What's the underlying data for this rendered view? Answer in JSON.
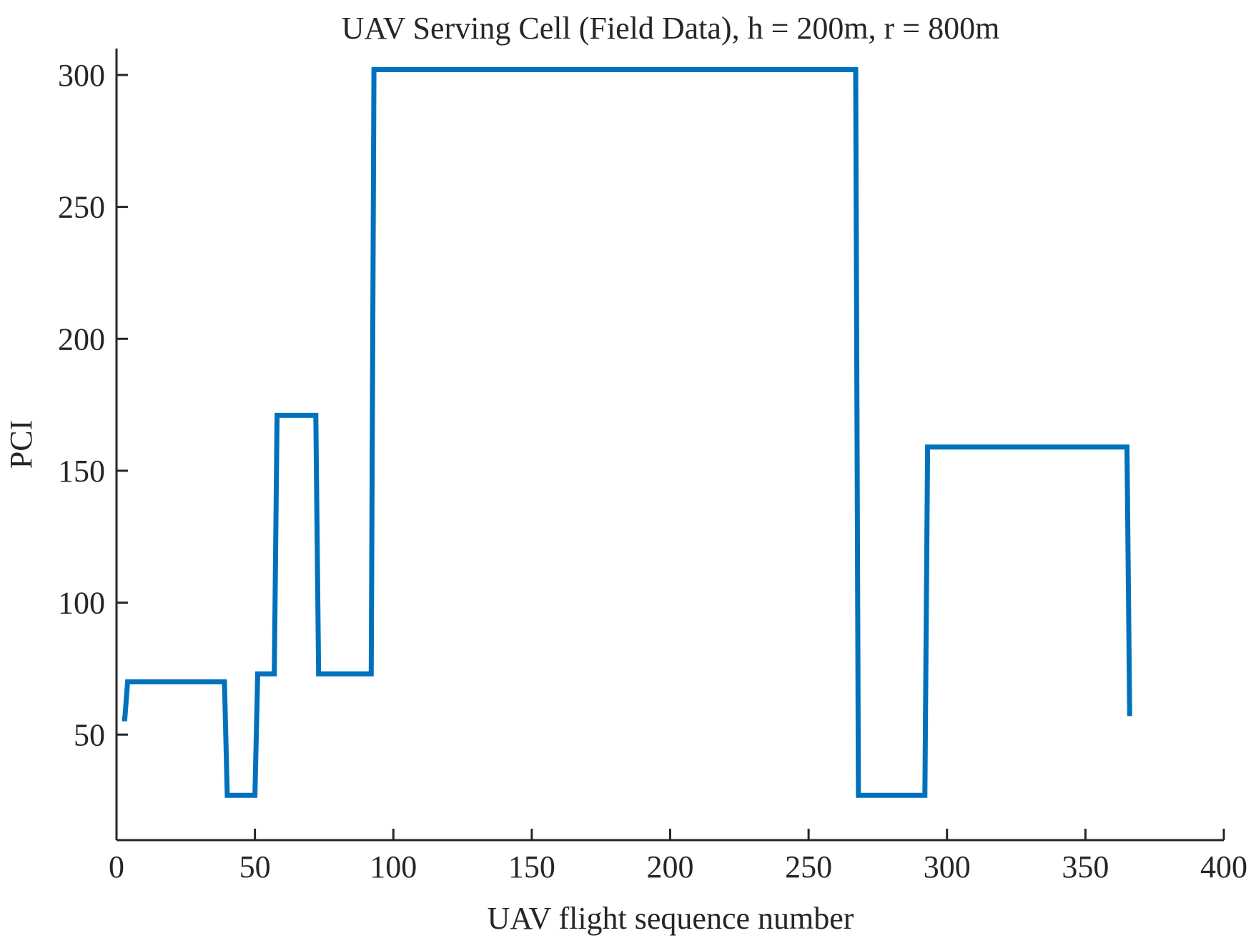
{
  "chart_data": {
    "type": "line",
    "title": "UAV Serving Cell (Field Data), h = 200m, r = 800m",
    "xlabel": "UAV flight sequence number",
    "ylabel": "PCI",
    "xlim": [
      0,
      400
    ],
    "ylim": [
      10,
      310
    ],
    "xticks": [
      0,
      50,
      100,
      150,
      200,
      250,
      300,
      350,
      400
    ],
    "yticks": [
      50,
      100,
      150,
      200,
      250,
      300
    ],
    "grid": false,
    "line_color": "#0072BD",
    "series": [
      {
        "x": [
          2,
          3,
          4,
          39,
          40,
          50,
          51,
          57,
          58,
          72,
          73,
          92,
          93,
          267,
          268,
          292,
          293,
          365,
          366
        ],
        "y": [
          56,
          56,
          70,
          70,
          27,
          27,
          73,
          73,
          171,
          171,
          73,
          73,
          302,
          302,
          27,
          27,
          159,
          159,
          57
        ]
      }
    ]
  }
}
